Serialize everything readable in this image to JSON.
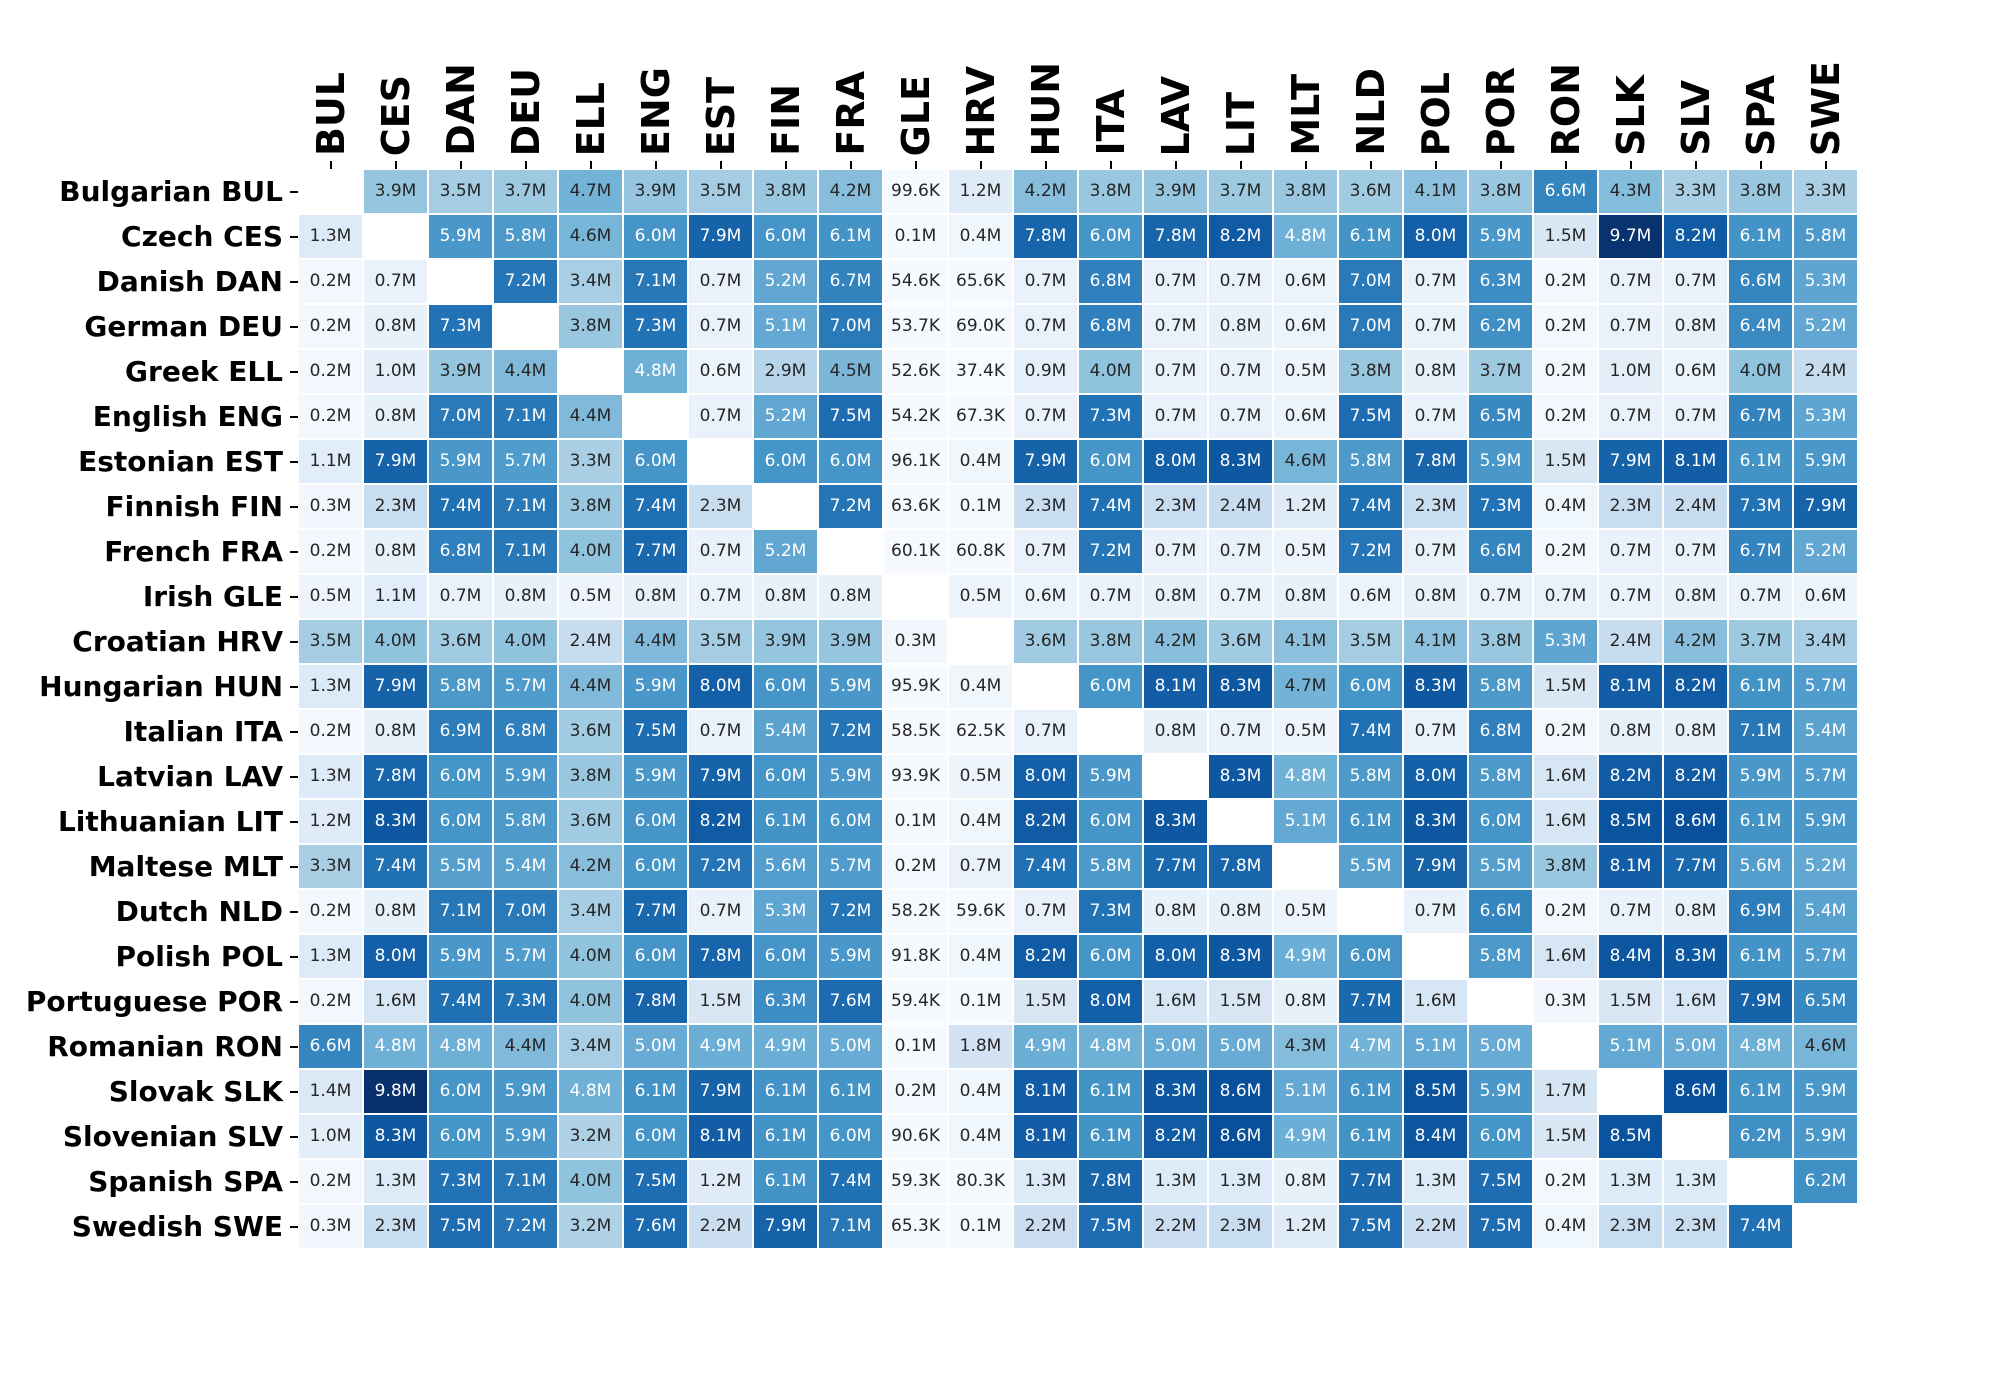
{
  "chart_data": {
    "type": "heatmap",
    "title": "",
    "xlabel": "",
    "ylabel": "",
    "legend": "none",
    "grid": "white cell separators",
    "columns": [
      "BUL",
      "CES",
      "DAN",
      "DEU",
      "ELL",
      "ENG",
      "EST",
      "FIN",
      "FRA",
      "GLE",
      "HRV",
      "HUN",
      "ITA",
      "LAV",
      "LIT",
      "MLT",
      "NLD",
      "POL",
      "POR",
      "RON",
      "SLK",
      "SLV",
      "SPA",
      "SWE"
    ],
    "rows": [
      {
        "label": "Bulgarian BUL",
        "code": "BUL"
      },
      {
        "label": "Czech CES",
        "code": "CES"
      },
      {
        "label": "Danish DAN",
        "code": "DAN"
      },
      {
        "label": "German DEU",
        "code": "DEU"
      },
      {
        "label": "Greek ELL",
        "code": "ELL"
      },
      {
        "label": "English ENG",
        "code": "ENG"
      },
      {
        "label": "Estonian EST",
        "code": "EST"
      },
      {
        "label": "Finnish FIN",
        "code": "FIN"
      },
      {
        "label": "French FRA",
        "code": "FRA"
      },
      {
        "label": "Irish GLE",
        "code": "GLE"
      },
      {
        "label": "Croatian HRV",
        "code": "HRV"
      },
      {
        "label": "Hungarian HUN",
        "code": "HUN"
      },
      {
        "label": "Italian ITA",
        "code": "ITA"
      },
      {
        "label": "Latvian LAV",
        "code": "LAV"
      },
      {
        "label": "Lithuanian LIT",
        "code": "LIT"
      },
      {
        "label": "Maltese MLT",
        "code": "MLT"
      },
      {
        "label": "Dutch NLD",
        "code": "NLD"
      },
      {
        "label": "Polish POL",
        "code": "POL"
      },
      {
        "label": "Portuguese POR",
        "code": "POR"
      },
      {
        "label": "Romanian RON",
        "code": "RON"
      },
      {
        "label": "Slovak SLK",
        "code": "SLK"
      },
      {
        "label": "Slovenian SLV",
        "code": "SLV"
      },
      {
        "label": "Spanish SPA",
        "code": "SPA"
      },
      {
        "label": "Swedish SWE",
        "code": "SWE"
      }
    ],
    "values": [
      [
        null,
        "3.9M",
        "3.5M",
        "3.7M",
        "4.7M",
        "3.9M",
        "3.5M",
        "3.8M",
        "4.2M",
        "99.6K",
        "1.2M",
        "4.2M",
        "3.8M",
        "3.9M",
        "3.7M",
        "3.8M",
        "3.6M",
        "4.1M",
        "3.8M",
        "6.6M",
        "4.3M",
        "3.3M",
        "3.8M",
        "3.3M"
      ],
      [
        "1.3M",
        null,
        "5.9M",
        "5.8M",
        "4.6M",
        "6.0M",
        "7.9M",
        "6.0M",
        "6.1M",
        "0.1M",
        "0.4M",
        "7.8M",
        "6.0M",
        "7.8M",
        "8.2M",
        "4.8M",
        "6.1M",
        "8.0M",
        "5.9M",
        "1.5M",
        "9.7M",
        "8.2M",
        "6.1M",
        "5.8M"
      ],
      [
        "0.2M",
        "0.7M",
        null,
        "7.2M",
        "3.4M",
        "7.1M",
        "0.7M",
        "5.2M",
        "6.7M",
        "54.6K",
        "65.6K",
        "0.7M",
        "6.8M",
        "0.7M",
        "0.7M",
        "0.6M",
        "7.0M",
        "0.7M",
        "6.3M",
        "0.2M",
        "0.7M",
        "0.7M",
        "6.6M",
        "5.3M"
      ],
      [
        "0.2M",
        "0.8M",
        "7.3M",
        null,
        "3.8M",
        "7.3M",
        "0.7M",
        "5.1M",
        "7.0M",
        "53.7K",
        "69.0K",
        "0.7M",
        "6.8M",
        "0.7M",
        "0.8M",
        "0.6M",
        "7.0M",
        "0.7M",
        "6.2M",
        "0.2M",
        "0.7M",
        "0.8M",
        "6.4M",
        "5.2M"
      ],
      [
        "0.2M",
        "1.0M",
        "3.9M",
        "4.4M",
        null,
        "4.8M",
        "0.6M",
        "2.9M",
        "4.5M",
        "52.6K",
        "37.4K",
        "0.9M",
        "4.0M",
        "0.7M",
        "0.7M",
        "0.5M",
        "3.8M",
        "0.8M",
        "3.7M",
        "0.2M",
        "1.0M",
        "0.6M",
        "4.0M",
        "2.4M"
      ],
      [
        "0.2M",
        "0.8M",
        "7.0M",
        "7.1M",
        "4.4M",
        null,
        "0.7M",
        "5.2M",
        "7.5M",
        "54.2K",
        "67.3K",
        "0.7M",
        "7.3M",
        "0.7M",
        "0.7M",
        "0.6M",
        "7.5M",
        "0.7M",
        "6.5M",
        "0.2M",
        "0.7M",
        "0.7M",
        "6.7M",
        "5.3M"
      ],
      [
        "1.1M",
        "7.9M",
        "5.9M",
        "5.7M",
        "3.3M",
        "6.0M",
        null,
        "6.0M",
        "6.0M",
        "96.1K",
        "0.4M",
        "7.9M",
        "6.0M",
        "8.0M",
        "8.3M",
        "4.6M",
        "5.8M",
        "7.8M",
        "5.9M",
        "1.5M",
        "7.9M",
        "8.1M",
        "6.1M",
        "5.9M"
      ],
      [
        "0.3M",
        "2.3M",
        "7.4M",
        "7.1M",
        "3.8M",
        "7.4M",
        "2.3M",
        null,
        "7.2M",
        "63.6K",
        "0.1M",
        "2.3M",
        "7.4M",
        "2.3M",
        "2.4M",
        "1.2M",
        "7.4M",
        "2.3M",
        "7.3M",
        "0.4M",
        "2.3M",
        "2.4M",
        "7.3M",
        "7.9M"
      ],
      [
        "0.2M",
        "0.8M",
        "6.8M",
        "7.1M",
        "4.0M",
        "7.7M",
        "0.7M",
        "5.2M",
        null,
        "60.1K",
        "60.8K",
        "0.7M",
        "7.2M",
        "0.7M",
        "0.7M",
        "0.5M",
        "7.2M",
        "0.7M",
        "6.6M",
        "0.2M",
        "0.7M",
        "0.7M",
        "6.7M",
        "5.2M"
      ],
      [
        "0.5M",
        "1.1M",
        "0.7M",
        "0.8M",
        "0.5M",
        "0.8M",
        "0.7M",
        "0.8M",
        "0.8M",
        null,
        "0.5M",
        "0.6M",
        "0.7M",
        "0.8M",
        "0.7M",
        "0.8M",
        "0.6M",
        "0.8M",
        "0.7M",
        "0.7M",
        "0.7M",
        "0.8M",
        "0.7M",
        "0.6M"
      ],
      [
        "3.5M",
        "4.0M",
        "3.6M",
        "4.0M",
        "2.4M",
        "4.4M",
        "3.5M",
        "3.9M",
        "3.9M",
        "0.3M",
        null,
        "3.6M",
        "3.8M",
        "4.2M",
        "3.6M",
        "4.1M",
        "3.5M",
        "4.1M",
        "3.8M",
        "5.3M",
        "2.4M",
        "4.2M",
        "3.7M",
        "3.4M"
      ],
      [
        "1.3M",
        "7.9M",
        "5.8M",
        "5.7M",
        "4.4M",
        "5.9M",
        "8.0M",
        "6.0M",
        "5.9M",
        "95.9K",
        "0.4M",
        null,
        "6.0M",
        "8.1M",
        "8.3M",
        "4.7M",
        "6.0M",
        "8.3M",
        "5.8M",
        "1.5M",
        "8.1M",
        "8.2M",
        "6.1M",
        "5.7M"
      ],
      [
        "0.2M",
        "0.8M",
        "6.9M",
        "6.8M",
        "3.6M",
        "7.5M",
        "0.7M",
        "5.4M",
        "7.2M",
        "58.5K",
        "62.5K",
        "0.7M",
        null,
        "0.8M",
        "0.7M",
        "0.5M",
        "7.4M",
        "0.7M",
        "6.8M",
        "0.2M",
        "0.8M",
        "0.8M",
        "7.1M",
        "5.4M"
      ],
      [
        "1.3M",
        "7.8M",
        "6.0M",
        "5.9M",
        "3.8M",
        "5.9M",
        "7.9M",
        "6.0M",
        "5.9M",
        "93.9K",
        "0.5M",
        "8.0M",
        "5.9M",
        null,
        "8.3M",
        "4.8M",
        "5.8M",
        "8.0M",
        "5.8M",
        "1.6M",
        "8.2M",
        "8.2M",
        "5.9M",
        "5.7M"
      ],
      [
        "1.2M",
        "8.3M",
        "6.0M",
        "5.8M",
        "3.6M",
        "6.0M",
        "8.2M",
        "6.1M",
        "6.0M",
        "0.1M",
        "0.4M",
        "8.2M",
        "6.0M",
        "8.3M",
        null,
        "5.1M",
        "6.1M",
        "8.3M",
        "6.0M",
        "1.6M",
        "8.5M",
        "8.6M",
        "6.1M",
        "5.9M"
      ],
      [
        "3.3M",
        "7.4M",
        "5.5M",
        "5.4M",
        "4.2M",
        "6.0M",
        "7.2M",
        "5.6M",
        "5.7M",
        "0.2M",
        "0.7M",
        "7.4M",
        "5.8M",
        "7.7M",
        "7.8M",
        null,
        "5.5M",
        "7.9M",
        "5.5M",
        "3.8M",
        "8.1M",
        "7.7M",
        "5.6M",
        "5.2M"
      ],
      [
        "0.2M",
        "0.8M",
        "7.1M",
        "7.0M",
        "3.4M",
        "7.7M",
        "0.7M",
        "5.3M",
        "7.2M",
        "58.2K",
        "59.6K",
        "0.7M",
        "7.3M",
        "0.8M",
        "0.8M",
        "0.5M",
        null,
        "0.7M",
        "6.6M",
        "0.2M",
        "0.7M",
        "0.8M",
        "6.9M",
        "5.4M"
      ],
      [
        "1.3M",
        "8.0M",
        "5.9M",
        "5.7M",
        "4.0M",
        "6.0M",
        "7.8M",
        "6.0M",
        "5.9M",
        "91.8K",
        "0.4M",
        "8.2M",
        "6.0M",
        "8.0M",
        "8.3M",
        "4.9M",
        "6.0M",
        null,
        "5.8M",
        "1.6M",
        "8.4M",
        "8.3M",
        "6.1M",
        "5.7M"
      ],
      [
        "0.2M",
        "1.6M",
        "7.4M",
        "7.3M",
        "4.0M",
        "7.8M",
        "1.5M",
        "6.3M",
        "7.6M",
        "59.4K",
        "0.1M",
        "1.5M",
        "8.0M",
        "1.6M",
        "1.5M",
        "0.8M",
        "7.7M",
        "1.6M",
        null,
        "0.3M",
        "1.5M",
        "1.6M",
        "7.9M",
        "6.5M"
      ],
      [
        "6.6M",
        "4.8M",
        "4.8M",
        "4.4M",
        "3.4M",
        "5.0M",
        "4.9M",
        "4.9M",
        "5.0M",
        "0.1M",
        "1.8M",
        "4.9M",
        "4.8M",
        "5.0M",
        "5.0M",
        "4.3M",
        "4.7M",
        "5.1M",
        "5.0M",
        null,
        "5.1M",
        "5.0M",
        "4.8M",
        "4.6M"
      ],
      [
        "1.4M",
        "9.8M",
        "6.0M",
        "5.9M",
        "4.8M",
        "6.1M",
        "7.9M",
        "6.1M",
        "6.1M",
        "0.2M",
        "0.4M",
        "8.1M",
        "6.1M",
        "8.3M",
        "8.6M",
        "5.1M",
        "6.1M",
        "8.5M",
        "5.9M",
        "1.7M",
        null,
        "8.6M",
        "6.1M",
        "5.9M"
      ],
      [
        "1.0M",
        "8.3M",
        "6.0M",
        "5.9M",
        "3.2M",
        "6.0M",
        "8.1M",
        "6.1M",
        "6.0M",
        "90.6K",
        "0.4M",
        "8.1M",
        "6.1M",
        "8.2M",
        "8.6M",
        "4.9M",
        "6.1M",
        "8.4M",
        "6.0M",
        "1.5M",
        "8.5M",
        null,
        "6.2M",
        "5.9M"
      ],
      [
        "0.2M",
        "1.3M",
        "7.3M",
        "7.1M",
        "4.0M",
        "7.5M",
        "1.2M",
        "6.1M",
        "7.4M",
        "59.3K",
        "80.3K",
        "1.3M",
        "7.8M",
        "1.3M",
        "1.3M",
        "0.8M",
        "7.7M",
        "1.3M",
        "7.5M",
        "0.2M",
        "1.3M",
        "1.3M",
        null,
        "6.2M"
      ],
      [
        "0.3M",
        "2.3M",
        "7.5M",
        "7.2M",
        "3.2M",
        "7.6M",
        "2.2M",
        "7.9M",
        "7.1M",
        "65.3K",
        "0.1M",
        "2.2M",
        "7.5M",
        "2.2M",
        "2.3M",
        "1.2M",
        "7.5M",
        "2.2M",
        "7.5M",
        "0.4M",
        "2.3M",
        "2.3M",
        "7.4M",
        null
      ]
    ],
    "colormap": {
      "name": "Blues",
      "vmin_millions": 0,
      "vmax_millions": 9.8,
      "stops": [
        "#f7fbff",
        "#deebf7",
        "#c6dbef",
        "#9ecae1",
        "#6baed6",
        "#4292c6",
        "#2171b5",
        "#08519c",
        "#08306b"
      ]
    },
    "text_rules": {
      "dark_text": "#262626",
      "light_text": "#ffffff",
      "light_text_min_millions": 4.75,
      "light_text_overrides": [
        [
          "RON",
          "NLD"
        ]
      ]
    },
    "empty_cell_color": "#ffffff",
    "tick_color": "#000000"
  }
}
